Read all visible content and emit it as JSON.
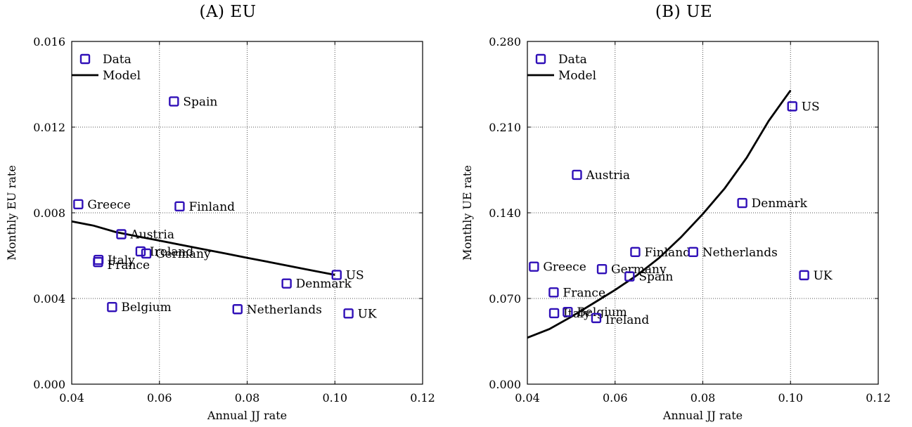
{
  "colors": {
    "marker": "#3010b8",
    "model_line": "#000000",
    "grid": "#555555"
  },
  "chart_data": [
    {
      "type": "scatter",
      "title": "(A) EU",
      "xlabel": "Annual JJ rate",
      "ylabel": "Monthly EU rate",
      "xlim": [
        0.04,
        0.12
      ],
      "ylim": [
        0.0,
        0.016
      ],
      "xticks": [
        "0.04",
        "0.06",
        "0.08",
        "0.10",
        "0.12"
      ],
      "yticks": [
        "0.000",
        "0.004",
        "0.008",
        "0.012",
        "0.016"
      ],
      "grid": true,
      "legend_position": "top-left",
      "legend": [
        {
          "label": "Data",
          "kind": "marker"
        },
        {
          "label": "Model",
          "kind": "line"
        }
      ],
      "series": [
        {
          "name": "Data",
          "points": [
            {
              "label": "Spain",
              "x": 0.0633,
              "y": 0.0132
            },
            {
              "label": "Greece",
              "x": 0.0415,
              "y": 0.0084
            },
            {
              "label": "Finland",
              "x": 0.0646,
              "y": 0.0083
            },
            {
              "label": "Austria",
              "x": 0.0513,
              "y": 0.007
            },
            {
              "label": "Ireland",
              "x": 0.0557,
              "y": 0.0062
            },
            {
              "label": "Germany",
              "x": 0.057,
              "y": 0.0061
            },
            {
              "label": "Italy",
              "x": 0.0461,
              "y": 0.0058
            },
            {
              "label": "France",
              "x": 0.046,
              "y": 0.0057
            },
            {
              "label": "US",
              "x": 0.1004,
              "y": 0.0051
            },
            {
              "label": "Denmark",
              "x": 0.089,
              "y": 0.0047
            },
            {
              "label": "Belgium",
              "x": 0.0492,
              "y": 0.0036
            },
            {
              "label": "Netherlands",
              "x": 0.0778,
              "y": 0.0035
            },
            {
              "label": "UK",
              "x": 0.1031,
              "y": 0.0033
            }
          ]
        },
        {
          "name": "Model",
          "x": [
            0.04,
            0.045,
            0.05,
            0.055,
            0.06,
            0.065,
            0.07,
            0.075,
            0.08,
            0.085,
            0.09,
            0.095,
            0.1
          ],
          "y": [
            0.0076,
            0.0074,
            0.0071,
            0.0069,
            0.0067,
            0.0065,
            0.0063,
            0.0061,
            0.0059,
            0.0057,
            0.0055,
            0.0053,
            0.0051
          ]
        }
      ]
    },
    {
      "type": "scatter",
      "title": "(B) UE",
      "xlabel": "Annual JJ rate",
      "ylabel": "Monthly UE rate",
      "xlim": [
        0.04,
        0.12
      ],
      "ylim": [
        0.0,
        0.28
      ],
      "xticks": [
        "0.04",
        "0.06",
        "0.08",
        "0.10",
        "0.12"
      ],
      "yticks": [
        "0.000",
        "0.070",
        "0.140",
        "0.210",
        "0.280"
      ],
      "grid": true,
      "legend_position": "top-left",
      "legend": [
        {
          "label": "Data",
          "kind": "marker"
        },
        {
          "label": "Model",
          "kind": "line"
        }
      ],
      "series": [
        {
          "name": "Data",
          "points": [
            {
              "label": "US",
              "x": 0.1004,
              "y": 0.227
            },
            {
              "label": "Austria",
              "x": 0.0513,
              "y": 0.171
            },
            {
              "label": "Denmark",
              "x": 0.089,
              "y": 0.148
            },
            {
              "label": "Finland",
              "x": 0.0646,
              "y": 0.108
            },
            {
              "label": "Netherlands",
              "x": 0.0778,
              "y": 0.108
            },
            {
              "label": "Greece",
              "x": 0.0415,
              "y": 0.096
            },
            {
              "label": "Germany",
              "x": 0.057,
              "y": 0.094
            },
            {
              "label": "Spain",
              "x": 0.0633,
              "y": 0.088
            },
            {
              "label": "UK",
              "x": 0.1031,
              "y": 0.089
            },
            {
              "label": "France",
              "x": 0.046,
              "y": 0.075
            },
            {
              "label": "Italy",
              "x": 0.0461,
              "y": 0.058
            },
            {
              "label": "Belgium",
              "x": 0.0492,
              "y": 0.059
            },
            {
              "label": "Ireland",
              "x": 0.0557,
              "y": 0.054
            }
          ]
        },
        {
          "name": "Model",
          "x": [
            0.04,
            0.045,
            0.05,
            0.055,
            0.06,
            0.065,
            0.07,
            0.075,
            0.08,
            0.085,
            0.09,
            0.093,
            0.095,
            0.098,
            0.1
          ],
          "y": [
            0.038,
            0.045,
            0.055,
            0.066,
            0.077,
            0.089,
            0.103,
            0.12,
            0.139,
            0.16,
            0.185,
            0.203,
            0.215,
            0.23,
            0.24
          ]
        }
      ]
    }
  ]
}
